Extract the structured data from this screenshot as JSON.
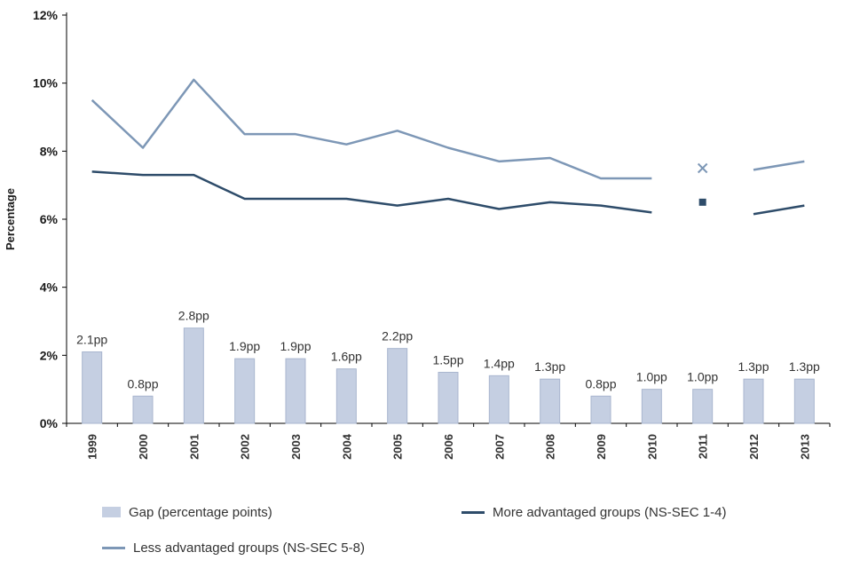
{
  "chart_data": {
    "type": "combo",
    "title": "",
    "ylabel": "Percentage",
    "ylim": [
      0,
      12
    ],
    "ytick_values": [
      0,
      2,
      4,
      6,
      8,
      10,
      12
    ],
    "ytick_labels": [
      "0%",
      "2%",
      "4%",
      "6%",
      "8%",
      "10%",
      "12%"
    ],
    "grid": false,
    "legend_position": "bottom",
    "categories": [
      "1999",
      "2000",
      "2001",
      "2002",
      "2003",
      "2004",
      "2005",
      "2006",
      "2007",
      "2008",
      "2009",
      "2010",
      "2011",
      "2012",
      "2013"
    ],
    "series": [
      {
        "name": "Gap (percentage points)",
        "type": "bar",
        "color": "#c5cfe2",
        "border": "#a9b6cf",
        "values": [
          2.1,
          0.8,
          2.8,
          1.9,
          1.9,
          1.6,
          2.2,
          1.5,
          1.4,
          1.3,
          0.8,
          1.0,
          1.0,
          1.3,
          1.3
        ],
        "labels": [
          "2.1pp",
          "0.8pp",
          "2.8pp",
          "1.9pp",
          "1.9pp",
          "1.6pp",
          "2.2pp",
          "1.5pp",
          "1.4pp",
          "1.3pp",
          "0.8pp",
          "1.0pp",
          "1.0pp",
          "1.3pp",
          "1.3pp"
        ]
      },
      {
        "name": "More advantaged groups (NS-SEC 1-4)",
        "type": "line",
        "color": "#2e4c6a",
        "values": [
          7.4,
          7.3,
          7.3,
          6.6,
          6.6,
          6.6,
          6.4,
          6.6,
          6.3,
          6.5,
          6.4,
          6.2,
          6.5,
          6.15,
          6.4
        ],
        "segments": [
          [
            0,
            11
          ],
          [
            13,
            14
          ]
        ],
        "marker": {
          "index": 12,
          "shape": "square"
        }
      },
      {
        "name": "Less advantaged groups (NS-SEC 5-8)",
        "type": "line",
        "color": "#7d97b6",
        "values": [
          9.5,
          8.1,
          10.1,
          8.5,
          8.5,
          8.2,
          8.6,
          8.1,
          7.7,
          7.8,
          7.2,
          7.2,
          7.5,
          7.45,
          7.7
        ],
        "segments": [
          [
            0,
            11
          ],
          [
            13,
            14
          ]
        ],
        "marker": {
          "index": 12,
          "shape": "x"
        }
      }
    ]
  }
}
